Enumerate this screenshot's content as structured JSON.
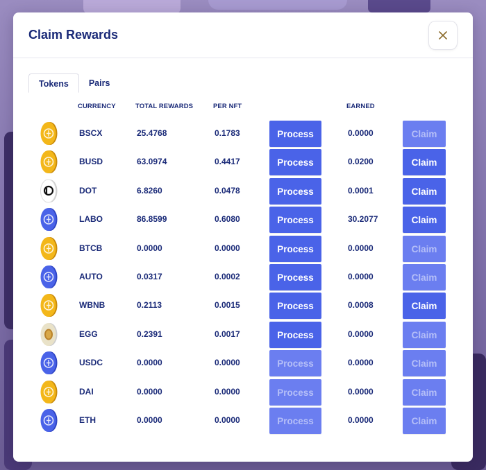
{
  "modal": {
    "title": "Claim Rewards",
    "close_icon": "close-icon"
  },
  "tabs": [
    {
      "label": "Tokens",
      "active": true
    },
    {
      "label": "Pairs",
      "active": false
    }
  ],
  "columns": {
    "currency": "CURRENCY",
    "total_rewards": "TOTAL REWARDS",
    "per_nft": "PER NFT",
    "earned": "EARNED"
  },
  "rows": [
    {
      "currency": "BSCX",
      "icon": "bscx-coin-icon",
      "color": "#f3b71a",
      "total": "25.4768",
      "per_nft": "0.1783",
      "earned": "0.0000",
      "process": "Process",
      "process_enabled": true,
      "claim": "Claim",
      "claim_enabled": false
    },
    {
      "currency": "BUSD",
      "icon": "busd-coin-icon",
      "color": "#f3b71a",
      "total": "63.0974",
      "per_nft": "0.4417",
      "earned": "0.0200",
      "process": "Process",
      "process_enabled": true,
      "claim": "Claim",
      "claim_enabled": true
    },
    {
      "currency": "DOT",
      "icon": "dot-coin-icon",
      "color": "#ffffff",
      "total": "6.8260",
      "per_nft": "0.0478",
      "earned": "0.0001",
      "process": "Process",
      "process_enabled": true,
      "claim": "Claim",
      "claim_enabled": true
    },
    {
      "currency": "LABO",
      "icon": "labo-coin-icon",
      "color": "#4a63e8",
      "total": "86.8599",
      "per_nft": "0.6080",
      "earned": "30.2077",
      "process": "Process",
      "process_enabled": true,
      "claim": "Claim",
      "claim_enabled": true
    },
    {
      "currency": "BTCB",
      "icon": "btcb-coin-icon",
      "color": "#f3b71a",
      "total": "0.0000",
      "per_nft": "0.0000",
      "earned": "0.0000",
      "process": "Process",
      "process_enabled": true,
      "claim": "Claim",
      "claim_enabled": false
    },
    {
      "currency": "AUTO",
      "icon": "auto-coin-icon",
      "color": "#4a63e8",
      "total": "0.0317",
      "per_nft": "0.0002",
      "earned": "0.0000",
      "process": "Process",
      "process_enabled": true,
      "claim": "Claim",
      "claim_enabled": false
    },
    {
      "currency": "WBNB",
      "icon": "wbnb-coin-icon",
      "color": "#f3b71a",
      "total": "0.2113",
      "per_nft": "0.0015",
      "earned": "0.0008",
      "process": "Process",
      "process_enabled": true,
      "claim": "Claim",
      "claim_enabled": true
    },
    {
      "currency": "EGG",
      "icon": "egg-coin-icon",
      "color": "#e9e2c8",
      "total": "0.2391",
      "per_nft": "0.0017",
      "earned": "0.0000",
      "process": "Process",
      "process_enabled": true,
      "claim": "Claim",
      "claim_enabled": false
    },
    {
      "currency": "USDC",
      "icon": "usdc-coin-icon",
      "color": "#4a63e8",
      "total": "0.0000",
      "per_nft": "0.0000",
      "earned": "0.0000",
      "process": "Process",
      "process_enabled": false,
      "claim": "Claim",
      "claim_enabled": false
    },
    {
      "currency": "DAI",
      "icon": "dai-coin-icon",
      "color": "#f3b71a",
      "total": "0.0000",
      "per_nft": "0.0000",
      "earned": "0.0000",
      "process": "Process",
      "process_enabled": false,
      "claim": "Claim",
      "claim_enabled": false
    },
    {
      "currency": "ETH",
      "icon": "eth-coin-icon",
      "color": "#4a63e8",
      "total": "0.0000",
      "per_nft": "0.0000",
      "earned": "0.0000",
      "process": "Process",
      "process_enabled": false,
      "claim": "Claim",
      "claim_enabled": false
    }
  ],
  "colors": {
    "accent": "#4a63e8",
    "text": "#1a2a78",
    "gold": "#f3b71a"
  }
}
